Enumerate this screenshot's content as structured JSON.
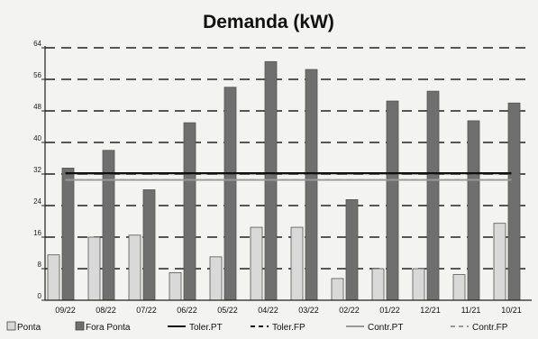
{
  "chart_data": {
    "type": "bar",
    "title": "Demanda (kW)",
    "xlabel": "",
    "ylabel": "",
    "ylim": [
      0,
      64
    ],
    "yticks": [
      0,
      8,
      16,
      24,
      32,
      40,
      48,
      56,
      64
    ],
    "grid": "horizontal dashed",
    "legend_position": "bottom",
    "categories": [
      "09/22",
      "08/22",
      "07/22",
      "06/22",
      "05/22",
      "04/22",
      "03/22",
      "02/22",
      "01/22",
      "12/21",
      "11/21",
      "10/21"
    ],
    "series": [
      {
        "name": "Ponta",
        "kind": "bar",
        "color": "#d9d9d9",
        "values": [
          11.5,
          16,
          16.5,
          7,
          11,
          18.5,
          18.5,
          5.5,
          8,
          8,
          6.5,
          19.5
        ]
      },
      {
        "name": "Fora Ponta",
        "kind": "bar",
        "color": "#6f6f6f",
        "values": [
          33.5,
          38,
          28,
          45,
          54,
          60.5,
          58.5,
          25.5,
          50.5,
          53,
          45.5,
          50
        ]
      },
      {
        "name": "Toler.PT",
        "kind": "line",
        "style": "solid",
        "color": "#111111",
        "values": [
          32.2,
          32.2,
          32.2,
          32.2,
          32.2,
          32.2,
          32.2,
          32.2,
          32.2,
          32.2,
          32.2,
          32.2
        ]
      },
      {
        "name": "Toler.FP",
        "kind": "line",
        "style": "dashed",
        "color": "#111111",
        "values": [
          32.2,
          32.2,
          32.2,
          32.2,
          32.2,
          32.2,
          32.2,
          32.2,
          32.2,
          32.2,
          32.2,
          32.2
        ]
      },
      {
        "name": "Contr.PT",
        "kind": "line",
        "style": "solid",
        "color": "#999999",
        "values": [
          30.5,
          30.5,
          30.5,
          30.5,
          30.5,
          30.5,
          30.5,
          30.5,
          30.5,
          30.5,
          30.5,
          30.5
        ]
      },
      {
        "name": "Contr.FP",
        "kind": "line",
        "style": "dashed",
        "color": "#999999",
        "values": [
          30.5,
          30.5,
          30.5,
          30.5,
          30.5,
          30.5,
          30.5,
          30.5,
          30.5,
          30.5,
          30.5,
          30.5
        ]
      }
    ]
  }
}
